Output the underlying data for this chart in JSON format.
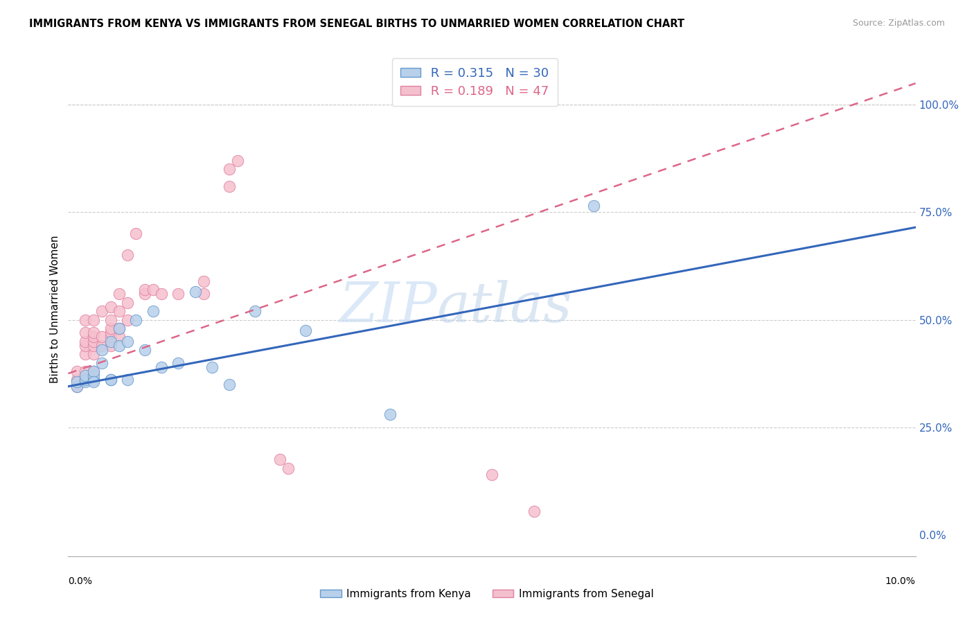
{
  "title": "IMMIGRANTS FROM KENYA VS IMMIGRANTS FROM SENEGAL BIRTHS TO UNMARRIED WOMEN CORRELATION CHART",
  "source": "Source: ZipAtlas.com",
  "ylabel": "Births to Unmarried Women",
  "legend_bottom": [
    "Immigrants from Kenya",
    "Immigrants from Senegal"
  ],
  "kenya_R": 0.315,
  "kenya_N": 30,
  "senegal_R": 0.189,
  "senegal_N": 47,
  "kenya_color": "#b8d0ea",
  "senegal_color": "#f5c0ce",
  "kenya_edge_color": "#6699cc",
  "senegal_edge_color": "#e080a0",
  "kenya_line_color": "#3366bb",
  "senegal_line_color": "#dd6688",
  "watermark_zip": "ZIP",
  "watermark_atlas": "atlas",
  "xlim": [
    0.0,
    0.1
  ],
  "ylim": [
    -0.05,
    1.1
  ],
  "kenya_trend_x0": 0.0,
  "kenya_trend_y0": 0.345,
  "kenya_trend_x1": 0.1,
  "kenya_trend_y1": 0.715,
  "senegal_trend_x0": 0.0,
  "senegal_trend_y0": 0.375,
  "senegal_trend_x1": 0.1,
  "senegal_trend_y1": 1.05,
  "kenya_scatter_x": [
    0.001,
    0.001,
    0.002,
    0.002,
    0.002,
    0.003,
    0.003,
    0.003,
    0.003,
    0.004,
    0.004,
    0.005,
    0.005,
    0.005,
    0.006,
    0.006,
    0.007,
    0.007,
    0.008,
    0.009,
    0.01,
    0.011,
    0.013,
    0.015,
    0.017,
    0.019,
    0.022,
    0.028,
    0.038,
    0.062
  ],
  "kenya_scatter_y": [
    0.345,
    0.355,
    0.355,
    0.36,
    0.37,
    0.36,
    0.37,
    0.38,
    0.355,
    0.4,
    0.43,
    0.36,
    0.45,
    0.36,
    0.48,
    0.44,
    0.36,
    0.45,
    0.5,
    0.43,
    0.52,
    0.39,
    0.4,
    0.565,
    0.39,
    0.35,
    0.52,
    0.475,
    0.28,
    0.765
  ],
  "senegal_scatter_x": [
    0.001,
    0.001,
    0.001,
    0.002,
    0.002,
    0.002,
    0.002,
    0.002,
    0.002,
    0.003,
    0.003,
    0.003,
    0.003,
    0.003,
    0.003,
    0.003,
    0.004,
    0.004,
    0.004,
    0.005,
    0.005,
    0.005,
    0.005,
    0.005,
    0.005,
    0.006,
    0.006,
    0.006,
    0.006,
    0.007,
    0.007,
    0.007,
    0.008,
    0.009,
    0.009,
    0.01,
    0.011,
    0.013,
    0.016,
    0.016,
    0.019,
    0.019,
    0.02,
    0.025,
    0.026,
    0.05,
    0.055
  ],
  "senegal_scatter_y": [
    0.345,
    0.36,
    0.38,
    0.38,
    0.42,
    0.44,
    0.45,
    0.47,
    0.5,
    0.38,
    0.42,
    0.44,
    0.45,
    0.46,
    0.47,
    0.5,
    0.44,
    0.46,
    0.52,
    0.44,
    0.46,
    0.47,
    0.48,
    0.5,
    0.53,
    0.46,
    0.48,
    0.52,
    0.56,
    0.5,
    0.54,
    0.65,
    0.7,
    0.56,
    0.57,
    0.57,
    0.56,
    0.56,
    0.56,
    0.59,
    0.81,
    0.85,
    0.87,
    0.175,
    0.155,
    0.14,
    0.055
  ]
}
